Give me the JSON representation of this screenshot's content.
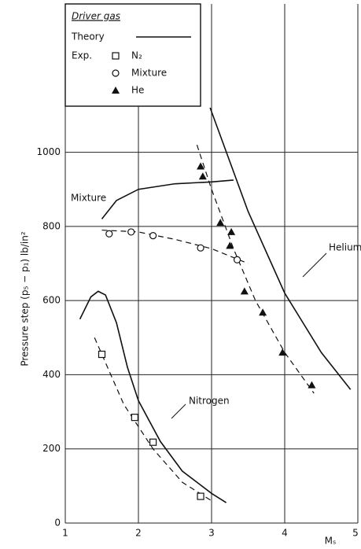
{
  "chart_data": {
    "type": "scatter",
    "x_label": "Mₛ",
    "y_label": "Pressure step (p₅ − p₁) lb/in²",
    "legend_title": "Driver gas",
    "legend_theory": "Theory",
    "legend_exp": "Exp.",
    "xlim": [
      1,
      5
    ],
    "xticks": [
      1,
      2,
      3,
      4,
      5
    ],
    "ylim": [
      0,
      1400
    ],
    "yticks": [
      0,
      200,
      400,
      600,
      800,
      1000
    ],
    "grid": true,
    "series": [
      {
        "name": "N₂",
        "marker": "open-square",
        "x": [
          1.5,
          1.95,
          2.2,
          2.85
        ],
        "values": [
          455,
          285,
          218,
          72
        ]
      },
      {
        "name": "Mixture",
        "marker": "open-circle",
        "x": [
          1.6,
          1.9,
          2.2,
          2.85,
          3.35
        ],
        "values": [
          780,
          785,
          775,
          742,
          710
        ]
      },
      {
        "name": "He",
        "marker": "filled-triangle",
        "x": [
          2.85,
          2.88,
          3.12,
          3.27,
          3.25,
          3.45,
          3.7,
          3.97,
          4.37
        ],
        "values": [
          962,
          935,
          810,
          785,
          748,
          625,
          568,
          460,
          372
        ]
      }
    ],
    "theory": [
      {
        "label": "Nitrogen",
        "x": [
          1.2,
          1.35,
          1.45,
          1.55,
          1.7,
          1.85,
          2.0,
          2.3,
          2.6,
          3.0,
          3.2
        ],
        "values": [
          550,
          610,
          625,
          615,
          540,
          420,
          330,
          220,
          140,
          80,
          55
        ]
      },
      {
        "label": "Mixture",
        "x": [
          1.5,
          1.7,
          2.0,
          2.5,
          3.0,
          3.3
        ],
        "values": [
          820,
          870,
          900,
          915,
          920,
          925
        ]
      },
      {
        "label": "Helium",
        "x": [
          2.98,
          3.5,
          4.0,
          4.5,
          4.9
        ],
        "values": [
          1120,
          840,
          620,
          460,
          360
        ]
      }
    ],
    "fits": [
      {
        "x": [
          1.4,
          1.8,
          2.2,
          2.6,
          3.0
        ],
        "values": [
          500,
          320,
          200,
          110,
          60
        ]
      },
      {
        "x": [
          1.5,
          2.0,
          2.5,
          3.0,
          3.5
        ],
        "values": [
          790,
          785,
          765,
          740,
          700
        ]
      },
      {
        "x": [
          2.8,
          3.0,
          3.3,
          3.6,
          4.0,
          4.4
        ],
        "values": [
          1020,
          900,
          740,
          600,
          460,
          350
        ]
      }
    ]
  }
}
